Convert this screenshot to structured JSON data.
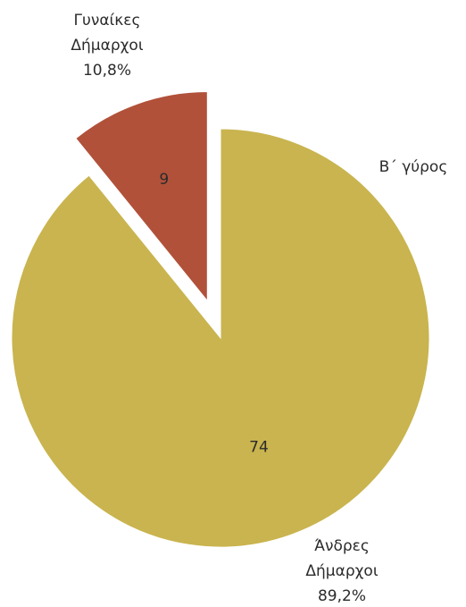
{
  "chart_data": {
    "type": "pie",
    "title": "Β΄ γύρος",
    "slices": [
      {
        "label_lines": [
          "Γυναίκες",
          "Δήμαρχοι",
          "10,8%"
        ],
        "value": 9,
        "value_label": "9",
        "percent": 10.8,
        "color": "#b1513a",
        "exploded": true
      },
      {
        "label_lines": [
          "Άνδρες",
          "Δήμαρχοι",
          "89,2%"
        ],
        "value": 74,
        "value_label": "74",
        "percent": 89.2,
        "color": "#c9b44f",
        "exploded": false
      }
    ],
    "legend": "none"
  }
}
